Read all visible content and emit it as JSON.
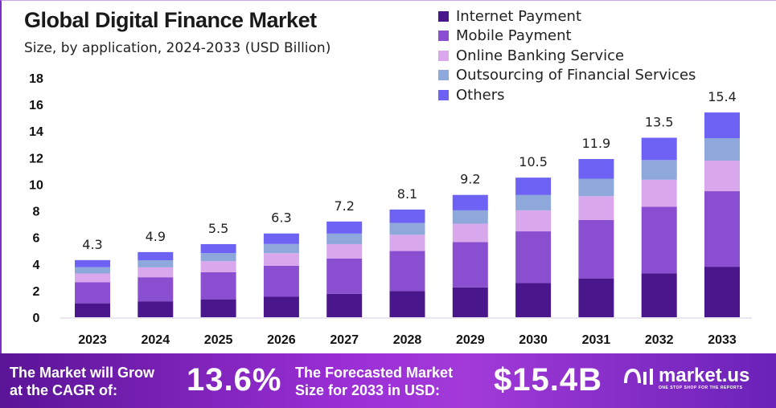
{
  "chart_data": {
    "type": "bar",
    "stacked": true,
    "title": "Global Digital Finance Market",
    "subtitle": "Size, by application, 2024-2033 (USD Billion)",
    "xlabel": "",
    "ylabel": "",
    "ylim": [
      0,
      18
    ],
    "yticks": [
      0,
      2,
      4,
      6,
      8,
      10,
      12,
      14,
      16,
      18
    ],
    "grid": false,
    "legend_position": "top-right",
    "categories": [
      "2023",
      "2024",
      "2025",
      "2026",
      "2027",
      "2028",
      "2029",
      "2030",
      "2031",
      "2032",
      "2033"
    ],
    "totals": [
      4.3,
      4.9,
      5.5,
      6.3,
      7.2,
      8.1,
      9.2,
      10.5,
      11.9,
      13.5,
      15.4
    ],
    "total_labels": [
      "4.3",
      "4.9",
      "5.5",
      "6.3",
      "7.2",
      "8.1",
      "9.2",
      "10.5",
      "11.9",
      "13.5",
      "15.4"
    ],
    "series": [
      {
        "name": "Internet Payment",
        "color": "#4a168c",
        "values": [
          1.05,
          1.2,
          1.35,
          1.54,
          1.76,
          1.98,
          2.25,
          2.57,
          2.92,
          3.31,
          3.8
        ]
      },
      {
        "name": "Mobile Payment",
        "color": "#8a4fd1",
        "values": [
          1.59,
          1.81,
          2.04,
          2.33,
          2.66,
          3.0,
          3.4,
          3.89,
          4.4,
          5.0,
          5.68
        ]
      },
      {
        "name": "Online Banking Service",
        "color": "#d9a8ec",
        "values": [
          0.65,
          0.74,
          0.83,
          0.95,
          1.08,
          1.22,
          1.38,
          1.58,
          1.79,
          2.03,
          2.3
        ]
      },
      {
        "name": "Outsourcing of Financial Services",
        "color": "#8fa8dc",
        "values": [
          0.47,
          0.54,
          0.6,
          0.69,
          0.79,
          0.89,
          1.01,
          1.15,
          1.31,
          1.48,
          1.69
        ]
      },
      {
        "name": "Others",
        "color": "#6e62f5",
        "values": [
          0.54,
          0.61,
          0.68,
          0.79,
          0.91,
          1.01,
          1.16,
          1.31,
          1.48,
          1.68,
          1.93
        ]
      }
    ]
  },
  "footer": {
    "cagr_text_1": "The Market will Grow",
    "cagr_text_2": "at the CAGR of:",
    "cagr_value": "13.6%",
    "forecast_text_1": "The Forecasted Market",
    "forecast_text_2": "Size for 2033 in USD:",
    "forecast_value": "$15.4B",
    "logo_text": "market.us",
    "logo_tagline": "ONE STOP SHOP FOR THE REPORTS"
  }
}
